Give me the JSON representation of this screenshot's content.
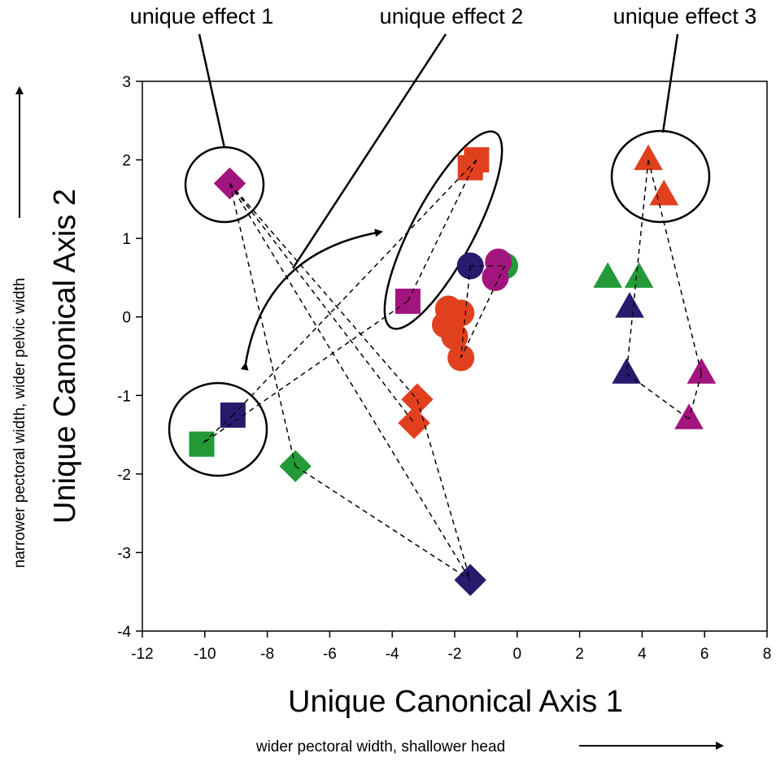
{
  "chart_data": {
    "type": "scatter",
    "title": "",
    "xlabel": "Unique Canonical Axis 1",
    "ylabel": "Unique Canonical Axis 2",
    "x_note": "wider pectoral width, shallower head",
    "y_note": "narrower pectoral width, wider pelvic width",
    "xlim": [
      -12,
      8
    ],
    "ylim": [
      -4,
      3
    ],
    "xticks": [
      "-12",
      "-10",
      "-8",
      "-6",
      "-4",
      "-2",
      "0",
      "2",
      "4",
      "6",
      "8"
    ],
    "yticks": [
      "3",
      "2",
      "1",
      "0",
      "-1",
      "-2",
      "-3",
      "-4"
    ],
    "grid": false,
    "colors": {
      "red": "#e0401e",
      "magenta": "#a3157e",
      "green": "#239a37",
      "navy": "#2a1a6e"
    },
    "annotations": [
      {
        "text": "unique effect 1"
      },
      {
        "text": "unique effect 2"
      },
      {
        "text": "unique effect 3"
      }
    ],
    "series": [
      {
        "shape": "diamond",
        "points": [
          {
            "x": -9.2,
            "y": 1.7,
            "color": "magenta"
          },
          {
            "x": -3.2,
            "y": -1.05,
            "color": "red"
          },
          {
            "x": -3.3,
            "y": -1.35,
            "color": "red"
          },
          {
            "x": -7.1,
            "y": -1.9,
            "color": "green"
          },
          {
            "x": -1.5,
            "y": -3.35,
            "color": "navy"
          }
        ],
        "links": [
          [
            0,
            1
          ],
          [
            0,
            2
          ],
          [
            0,
            3
          ],
          [
            0,
            4
          ],
          [
            1,
            4
          ],
          [
            3,
            4
          ]
        ]
      },
      {
        "shape": "square",
        "points": [
          {
            "x": -1.3,
            "y": 2.0,
            "color": "red"
          },
          {
            "x": -1.5,
            "y": 1.9,
            "color": "red"
          },
          {
            "x": -3.5,
            "y": 0.2,
            "color": "magenta"
          },
          {
            "x": -9.1,
            "y": -1.25,
            "color": "navy"
          },
          {
            "x": -10.1,
            "y": -1.62,
            "color": "green"
          }
        ],
        "links": [
          [
            0,
            2
          ],
          [
            0,
            3
          ],
          [
            2,
            4
          ],
          [
            3,
            4
          ]
        ]
      },
      {
        "shape": "circle",
        "points": [
          {
            "x": -1.5,
            "y": 0.65,
            "color": "navy"
          },
          {
            "x": -0.4,
            "y": 0.65,
            "color": "green"
          },
          {
            "x": -0.6,
            "y": 0.7,
            "color": "magenta"
          },
          {
            "x": -0.7,
            "y": 0.5,
            "color": "magenta"
          },
          {
            "x": -2.2,
            "y": 0.1,
            "color": "red"
          },
          {
            "x": -1.8,
            "y": 0.05,
            "color": "red"
          },
          {
            "x": -2.3,
            "y": -0.1,
            "color": "red"
          },
          {
            "x": -2.0,
            "y": -0.25,
            "color": "red"
          },
          {
            "x": -1.8,
            "y": -0.52,
            "color": "red"
          }
        ],
        "links": [
          [
            0,
            1
          ],
          [
            0,
            8
          ],
          [
            1,
            8
          ]
        ]
      },
      {
        "shape": "triangle",
        "points": [
          {
            "x": 4.2,
            "y": 2.0,
            "color": "red"
          },
          {
            "x": 4.7,
            "y": 1.55,
            "color": "red"
          },
          {
            "x": 2.9,
            "y": 0.5,
            "color": "green"
          },
          {
            "x": 3.9,
            "y": 0.5,
            "color": "green"
          },
          {
            "x": 3.6,
            "y": 0.12,
            "color": "navy"
          },
          {
            "x": 3.5,
            "y": -0.72,
            "color": "navy"
          },
          {
            "x": 5.9,
            "y": -0.72,
            "color": "magenta"
          },
          {
            "x": 5.5,
            "y": -1.3,
            "color": "magenta"
          }
        ],
        "links": [
          [
            0,
            5
          ],
          [
            0,
            6
          ],
          [
            5,
            7
          ],
          [
            6,
            7
          ]
        ]
      }
    ]
  }
}
